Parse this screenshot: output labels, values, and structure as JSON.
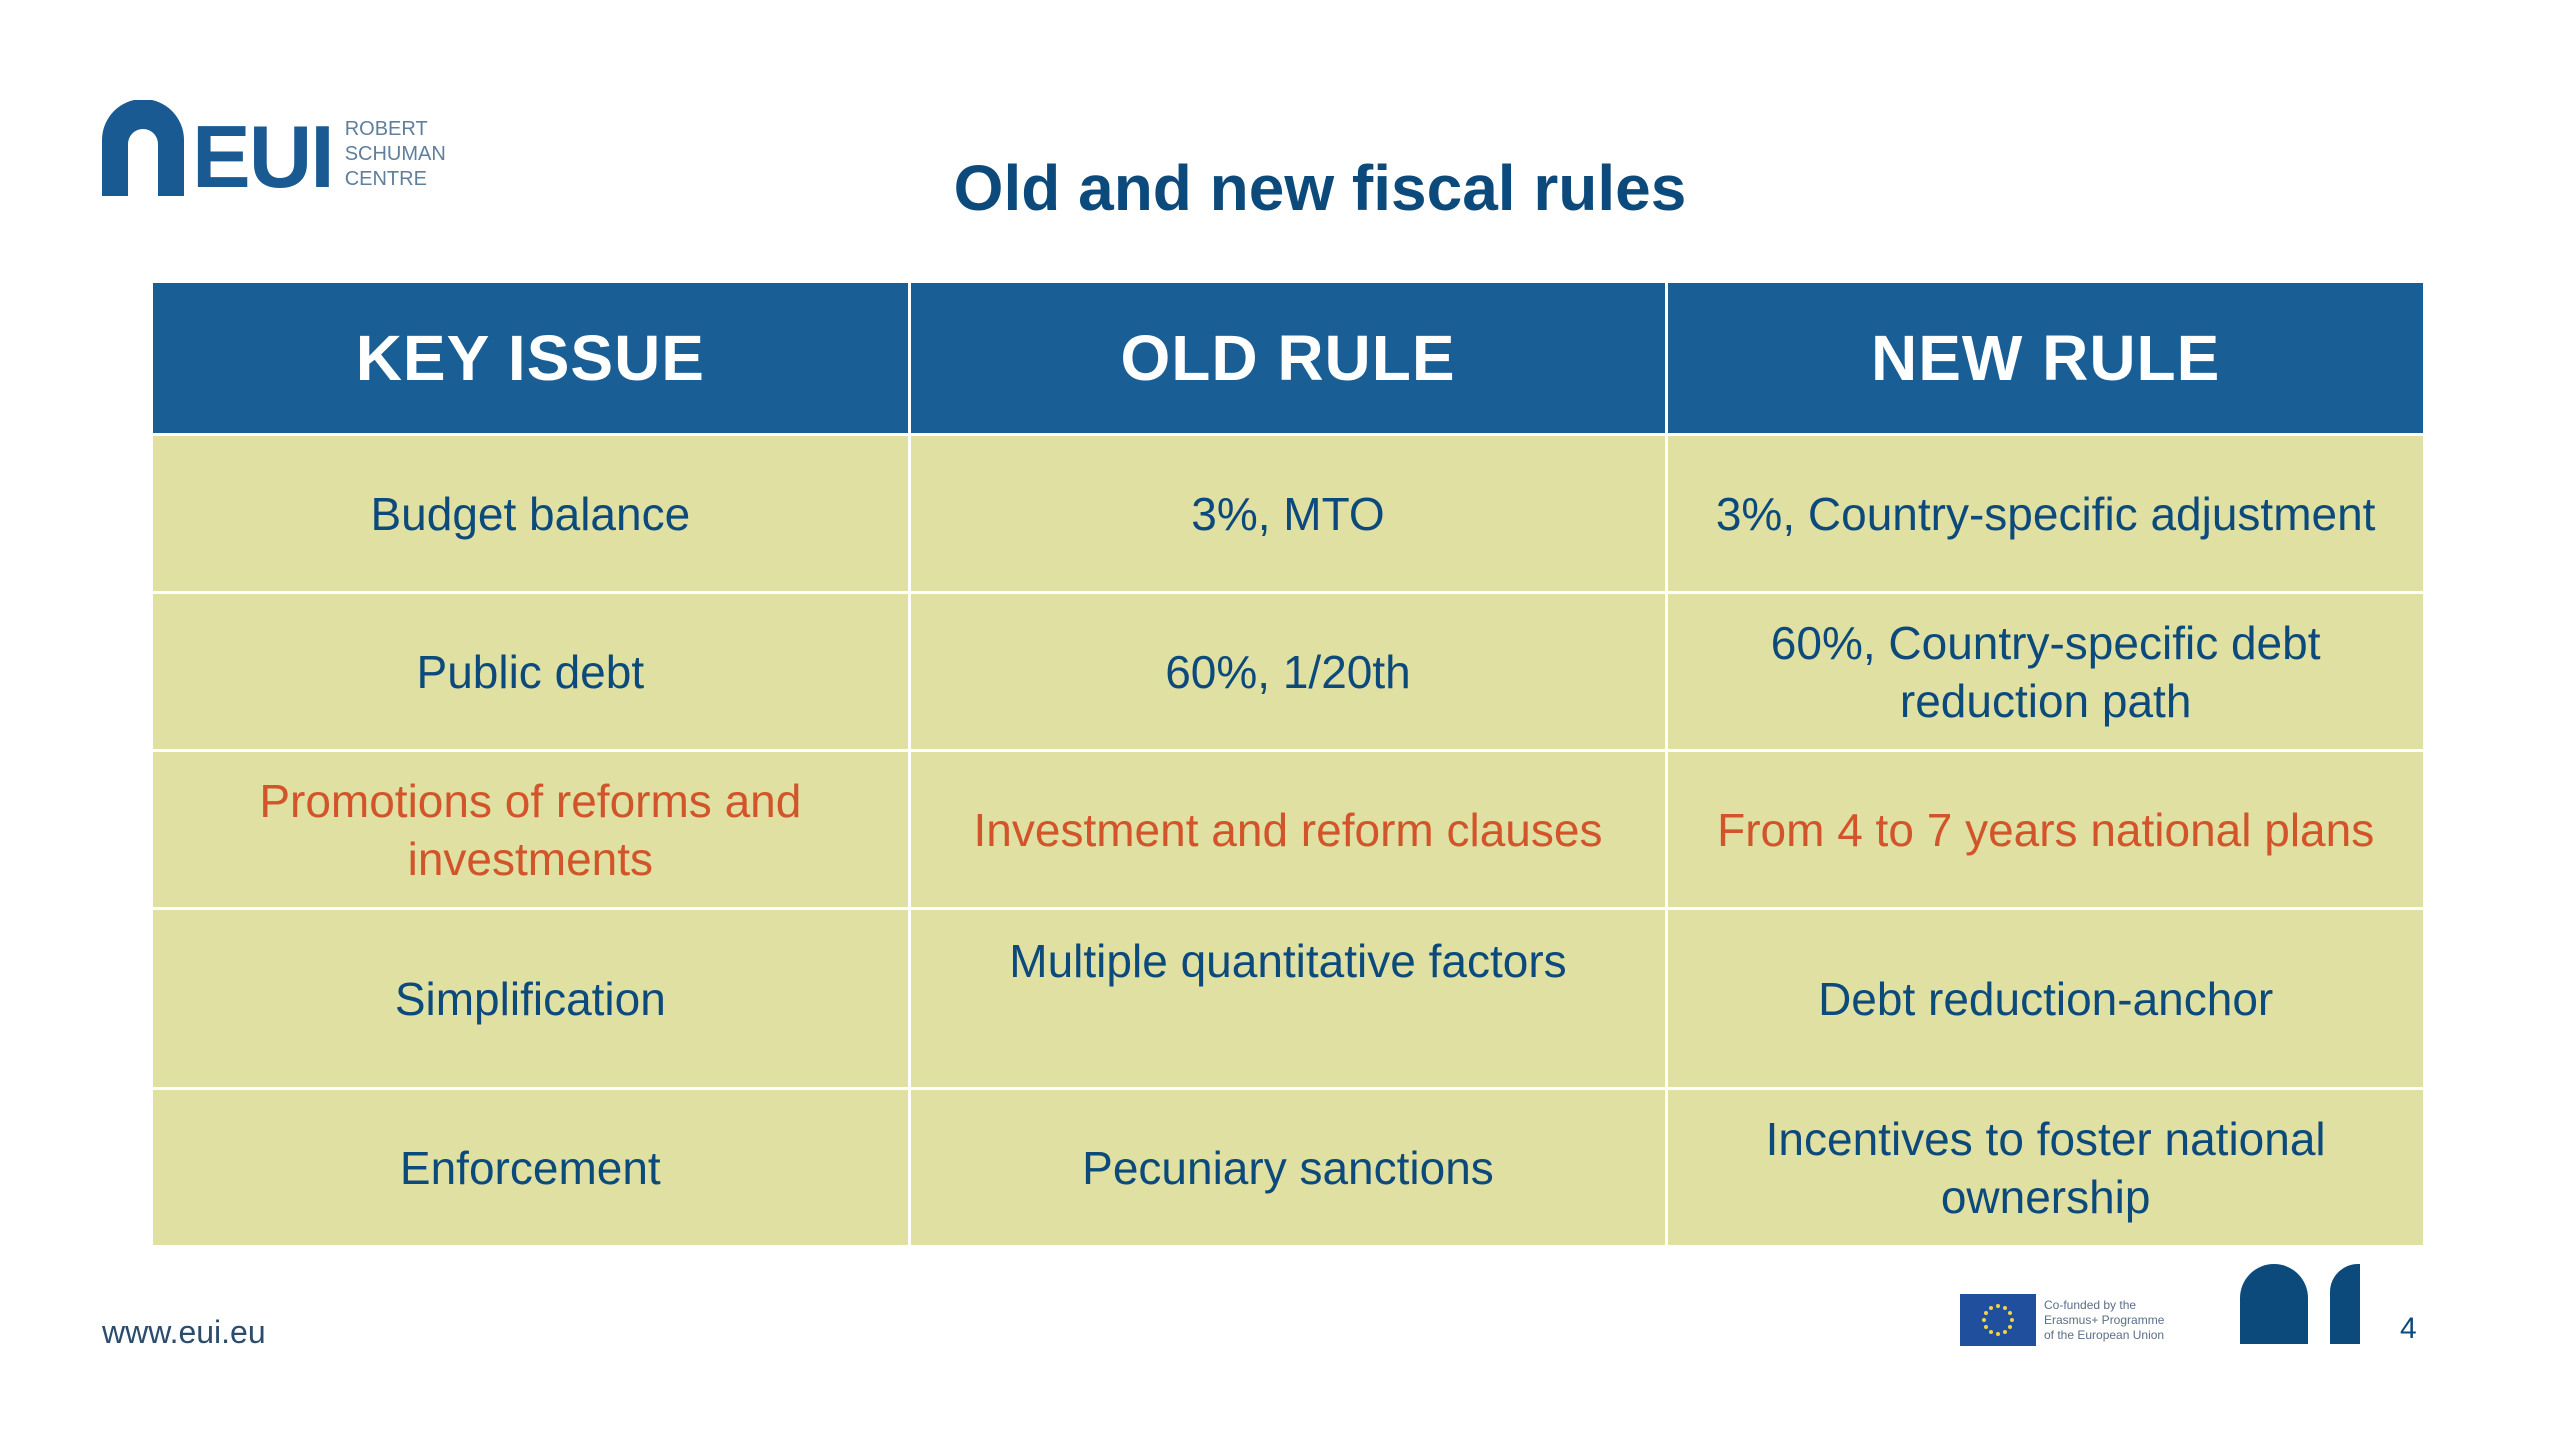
{
  "logo": {
    "word": "EUI",
    "sub_line1": "ROBERT",
    "sub_line2": "SCHUMAN",
    "sub_line3": "CENTRE"
  },
  "title": "Old and new fiscal rules",
  "table": {
    "headers": [
      "KEY ISSUE",
      "OLD RULE",
      "NEW RULE"
    ],
    "rows": [
      {
        "key": "Budget balance",
        "old": "3%, MTO",
        "new": "3%, Country-specific adjustment"
      },
      {
        "key": "Public debt",
        "old": "60%, 1/20th",
        "new": "60%, Country-specific debt reduction path"
      },
      {
        "key": "Promotions of reforms and investments",
        "old": "Investment and reform clauses",
        "new": "From 4 to 7 years national plans"
      },
      {
        "key": "Simplification",
        "old": "Multiple quantitative factors",
        "new": "Debt reduction-anchor"
      },
      {
        "key": "Enforcement",
        "old": "Pecuniary sanctions",
        "new": "Incentives to foster national ownership"
      }
    ]
  },
  "colors": {
    "header_bg": "#1a5e96",
    "cell_bg": "#dfe0a2",
    "text": "#0d4a7c",
    "highlight": "#d2542a"
  },
  "footer": {
    "url": "www.eui.eu",
    "eu_line1": "Co-funded by the",
    "eu_line2": "Erasmus+ Programme",
    "eu_line3": "of the European Union",
    "page_number": "4"
  },
  "icons": {
    "logo": "eui-arch-icon",
    "eu_flag": "eu-flag-icon",
    "footer_mark": "arch-mark-icon"
  }
}
